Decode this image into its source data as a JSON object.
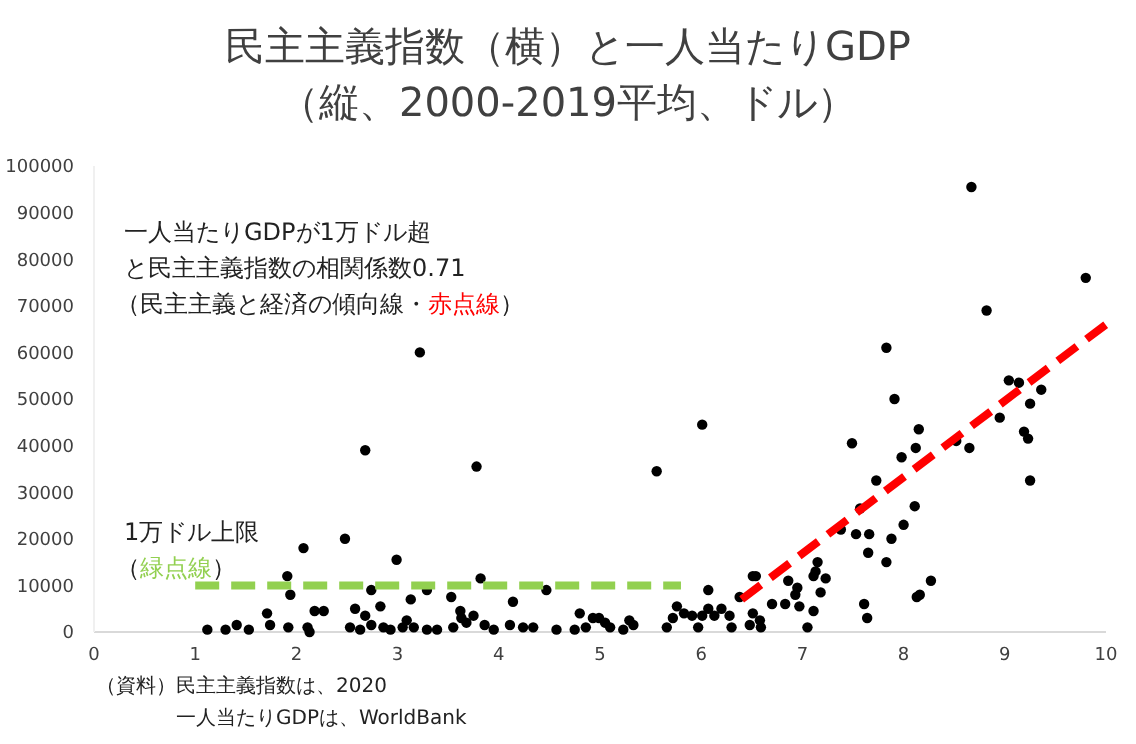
{
  "chart_data": {
    "type": "scatter",
    "title": "民主主義指数（横）と一人当たりGDP",
    "subtitle": "（縦、2000-2019平均、ドル）",
    "xlim": [
      0,
      10
    ],
    "xticks": [
      0,
      1,
      2,
      3,
      4,
      5,
      6,
      7,
      8,
      9,
      10
    ],
    "ylim": [
      0,
      100000
    ],
    "yticks": [
      0,
      10000,
      20000,
      30000,
      40000,
      50000,
      60000,
      70000,
      80000,
      90000,
      100000
    ],
    "grid": false,
    "annotations": [
      "一人当たりGDPが1万ドル超",
      "と民主主義指数の相関係数0.71",
      "（民主主義と経済の傾向線・",
      "赤点線",
      "）",
      "1万ドル上限",
      "（",
      "緑点線",
      "）",
      "（資料）民主主義指数は、2020",
      "一人当たりGDPは、WorldBank"
    ],
    "series": [
      {
        "color": "#000000",
        "marker": "circle",
        "x": [
          3.22,
          2.68,
          3.78,
          2.48,
          2.07,
          2.99,
          1.91,
          3.82,
          1.94,
          3.29,
          2.74,
          3.13,
          3.53,
          4.14,
          4.47,
          1.71,
          2.18,
          2.27,
          2.58,
          2.83,
          2.68,
          3.62,
          3.63,
          3.75,
          4.8,
          4.93,
          1.12,
          1.3,
          1.41,
          1.53,
          1.74,
          1.92,
          2.11,
          2.13,
          2.53,
          2.63,
          2.74,
          2.86,
          2.93,
          3.05,
          3.09,
          3.16,
          3.29,
          3.39,
          3.55,
          3.68,
          3.86,
          3.95,
          4.11,
          4.24,
          4.34,
          4.57,
          4.75,
          8.67,
          9.8,
          8.82,
          7.83,
          9.04,
          9.14,
          9.36,
          7.91,
          8.95,
          9.25,
          9.19,
          9.23,
          9.25,
          8.65,
          8.52,
          8.15,
          8.12,
          7.98,
          7.49,
          6.01,
          5.56,
          7.73,
          7.57,
          8.11,
          8,
          7.53,
          7.66,
          7.88,
          7.65,
          7.83,
          8.27,
          8.16,
          8.13,
          7.61,
          7.64,
          7.38,
          7.15,
          7.13,
          7.23,
          7.11,
          7.18,
          6.95,
          6.93,
          6.86,
          6.83,
          6.7,
          6.97,
          7.11,
          7.05,
          6.51,
          6.54,
          6.38,
          6.07,
          6.07,
          6.2,
          6.13,
          6.01,
          5.91,
          5.83,
          5.76,
          5.72,
          5.66,
          5.97,
          6.28,
          6.3,
          6.51,
          6.58,
          6.59,
          6.48,
          4.86,
          4.99,
          5.05,
          5.1,
          5.23,
          5.29,
          5.33
        ],
        "values": [
          60000,
          39000,
          35500,
          20000,
          18000,
          15500,
          12000,
          11500,
          8000,
          9000,
          9000,
          7000,
          7500,
          6500,
          9000,
          4000,
          4500,
          4500,
          5000,
          5500,
          3500,
          4500,
          3000,
          3500,
          4000,
          3000,
          500,
          500,
          1500,
          500,
          1500,
          1000,
          1000,
          0,
          1000,
          500,
          1500,
          1000,
          500,
          1000,
          2500,
          1000,
          500,
          500,
          1000,
          2000,
          1500,
          500,
          1500,
          1000,
          1000,
          500,
          500,
          95500,
          76000,
          69000,
          61000,
          54000,
          53500,
          52000,
          50000,
          46000,
          49000,
          43000,
          41500,
          32500,
          39500,
          41000,
          43500,
          39500,
          37500,
          40500,
          44500,
          34500,
          32500,
          26500,
          27000,
          23000,
          21000,
          21000,
          20000,
          17000,
          15000,
          11000,
          8000,
          7500,
          6000,
          3000,
          22000,
          15000,
          13000,
          11500,
          12000,
          8500,
          9500,
          8000,
          11000,
          6000,
          6000,
          5500,
          4500,
          1000,
          12000,
          12000,
          7500,
          9000,
          5000,
          5000,
          3500,
          3500,
          3500,
          4000,
          5500,
          3000,
          1000,
          1000,
          3500,
          1000,
          4000,
          2500,
          1000,
          1500,
          1000,
          3000,
          2000,
          1000,
          500,
          2500,
          1500
        ]
      },
      {
        "type": "line",
        "color": "#92d050",
        "line_style": "dashed",
        "marker": "none",
        "x": [
          1,
          5.8
        ],
        "values": [
          10000,
          10000
        ]
      },
      {
        "type": "line",
        "color": "#ff0000",
        "line_style": "dashed",
        "marker": "none",
        "x": [
          6.4,
          10
        ],
        "values": [
          7000,
          66000
        ]
      }
    ]
  }
}
